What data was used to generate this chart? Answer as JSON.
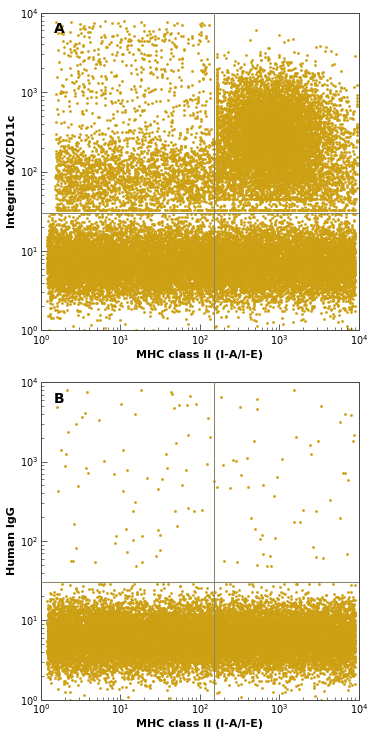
{
  "panel_A": {
    "label": "A",
    "ylabel": "Integrin αX/CD11c",
    "xlabel": "MHC class II (I-A/I-E)",
    "gate_x": 150,
    "gate_y": 30,
    "xlim": [
      1,
      10000
    ],
    "ylim": [
      1,
      10000
    ],
    "dot_color": "#CDA014"
  },
  "panel_B": {
    "label": "B",
    "ylabel": "Human IgG",
    "xlabel": "MHC class II (I-A/I-E)",
    "gate_x": 150,
    "gate_y": 30,
    "xlim": [
      1,
      10000
    ],
    "ylim": [
      1,
      10000
    ],
    "dot_color": "#CDA014"
  },
  "gate_color": "#888868",
  "dot_size": 4.0,
  "bg_color": "#ffffff",
  "label_fontsize": 7,
  "axis_label_fontsize": 8,
  "panel_label_fontsize": 10
}
